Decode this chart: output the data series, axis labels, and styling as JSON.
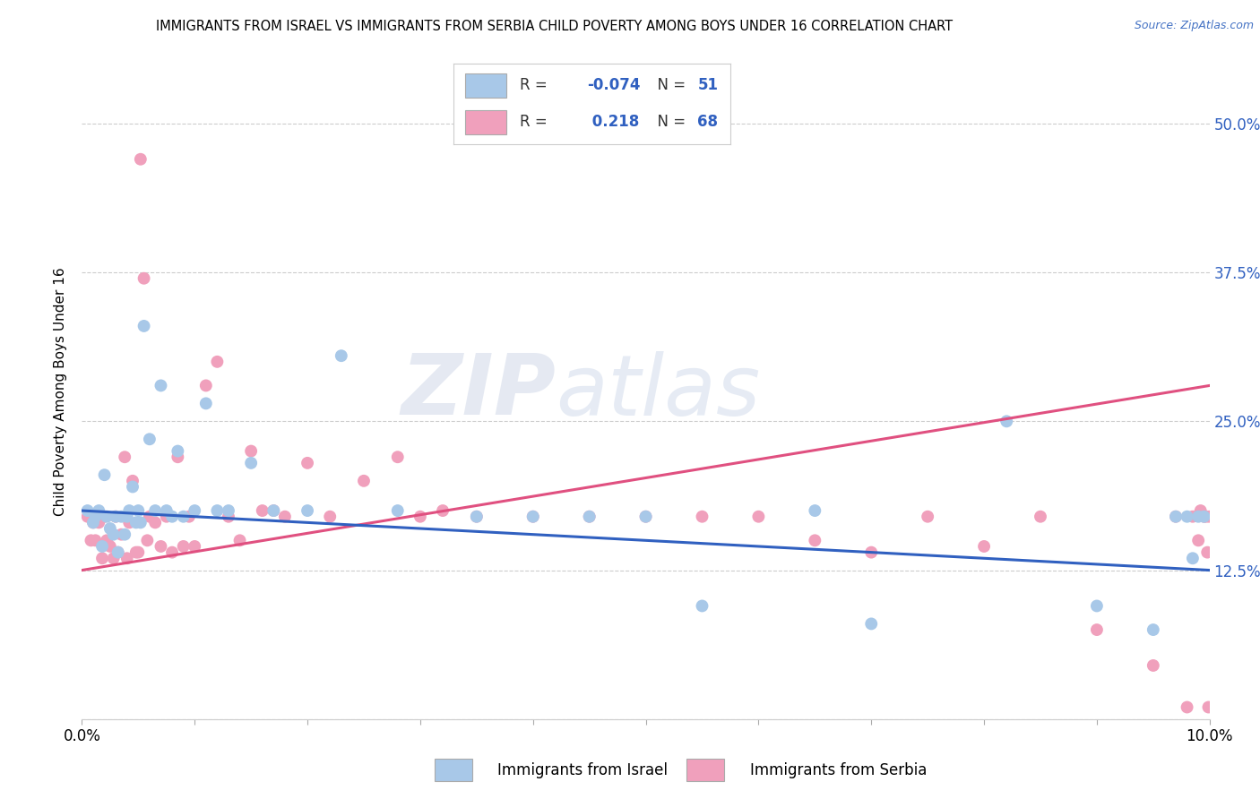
{
  "title": "IMMIGRANTS FROM ISRAEL VS IMMIGRANTS FROM SERBIA CHILD POVERTY AMONG BOYS UNDER 16 CORRELATION CHART",
  "source": "Source: ZipAtlas.com",
  "ylabel": "Child Poverty Among Boys Under 16",
  "xlabel_israel": "Immigrants from Israel",
  "xlabel_serbia": "Immigrants from Serbia",
  "watermark_zip": "ZIP",
  "watermark_atlas": "atlas",
  "israel_R": -0.074,
  "israel_N": 51,
  "serbia_R": 0.218,
  "serbia_N": 68,
  "israel_color": "#a8c8e8",
  "serbia_color": "#f0a0bc",
  "israel_line_color": "#3060c0",
  "serbia_line_color": "#e05080",
  "x_min": 0.0,
  "x_max": 10.0,
  "y_min": 0.0,
  "y_max": 55.0,
  "ytick_vals": [
    0,
    12.5,
    25.0,
    37.5,
    50.0
  ],
  "ytick_labels_right": [
    "",
    "12.5%",
    "25.0%",
    "37.5%",
    "50.0%"
  ],
  "israel_x": [
    0.05,
    0.1,
    0.12,
    0.15,
    0.18,
    0.2,
    0.22,
    0.25,
    0.28,
    0.3,
    0.32,
    0.35,
    0.38,
    0.4,
    0.42,
    0.45,
    0.48,
    0.5,
    0.52,
    0.55,
    0.6,
    0.65,
    0.7,
    0.75,
    0.8,
    0.85,
    0.9,
    1.0,
    1.1,
    1.2,
    1.3,
    1.5,
    1.7,
    2.0,
    2.3,
    2.8,
    3.5,
    4.0,
    4.5,
    5.0,
    5.5,
    6.5,
    7.0,
    8.2,
    9.0,
    9.5,
    9.7,
    9.8,
    9.85,
    9.9,
    9.95
  ],
  "israel_y": [
    17.5,
    16.5,
    17.0,
    17.5,
    14.5,
    20.5,
    17.0,
    16.0,
    15.5,
    17.0,
    14.0,
    17.0,
    15.5,
    17.0,
    17.5,
    19.5,
    16.5,
    17.5,
    16.5,
    33.0,
    23.5,
    17.5,
    28.0,
    17.5,
    17.0,
    22.5,
    17.0,
    17.5,
    26.5,
    17.5,
    17.5,
    21.5,
    17.5,
    17.5,
    30.5,
    17.5,
    17.0,
    17.0,
    17.0,
    17.0,
    9.5,
    17.5,
    8.0,
    25.0,
    9.5,
    7.5,
    17.0,
    17.0,
    13.5,
    17.0,
    17.0
  ],
  "serbia_x": [
    0.05,
    0.08,
    0.1,
    0.12,
    0.15,
    0.18,
    0.2,
    0.22,
    0.25,
    0.28,
    0.3,
    0.32,
    0.35,
    0.38,
    0.4,
    0.42,
    0.45,
    0.48,
    0.5,
    0.52,
    0.55,
    0.58,
    0.6,
    0.65,
    0.7,
    0.75,
    0.8,
    0.85,
    0.9,
    0.95,
    1.0,
    1.1,
    1.2,
    1.3,
    1.4,
    1.5,
    1.6,
    1.7,
    1.8,
    2.0,
    2.2,
    2.5,
    2.8,
    3.0,
    3.2,
    3.5,
    4.0,
    4.5,
    5.0,
    5.5,
    6.0,
    6.5,
    7.0,
    7.5,
    8.0,
    8.5,
    9.0,
    9.5,
    9.7,
    9.8,
    9.85,
    9.9,
    9.92,
    9.95,
    9.97,
    9.98,
    9.99,
    10.0
  ],
  "serbia_y": [
    17.0,
    15.0,
    16.5,
    15.0,
    16.5,
    13.5,
    17.0,
    15.0,
    14.5,
    13.5,
    17.0,
    14.0,
    15.5,
    22.0,
    13.5,
    16.5,
    20.0,
    14.0,
    14.0,
    47.0,
    37.0,
    15.0,
    17.0,
    16.5,
    14.5,
    17.0,
    14.0,
    22.0,
    14.5,
    17.0,
    14.5,
    28.0,
    30.0,
    17.0,
    15.0,
    22.5,
    17.5,
    17.5,
    17.0,
    21.5,
    17.0,
    20.0,
    22.0,
    17.0,
    17.5,
    17.0,
    17.0,
    17.0,
    17.0,
    17.0,
    17.0,
    15.0,
    14.0,
    17.0,
    14.5,
    17.0,
    7.5,
    4.5,
    17.0,
    1.0,
    17.0,
    15.0,
    17.5,
    17.0,
    17.0,
    14.0,
    1.0,
    17.0
  ],
  "israel_line_x0": 0.0,
  "israel_line_x1": 10.0,
  "israel_line_y0": 17.5,
  "israel_line_y1": 12.5,
  "serbia_line_x0": 0.0,
  "serbia_line_x1": 10.0,
  "serbia_line_y0": 12.5,
  "serbia_line_y1": 28.0
}
